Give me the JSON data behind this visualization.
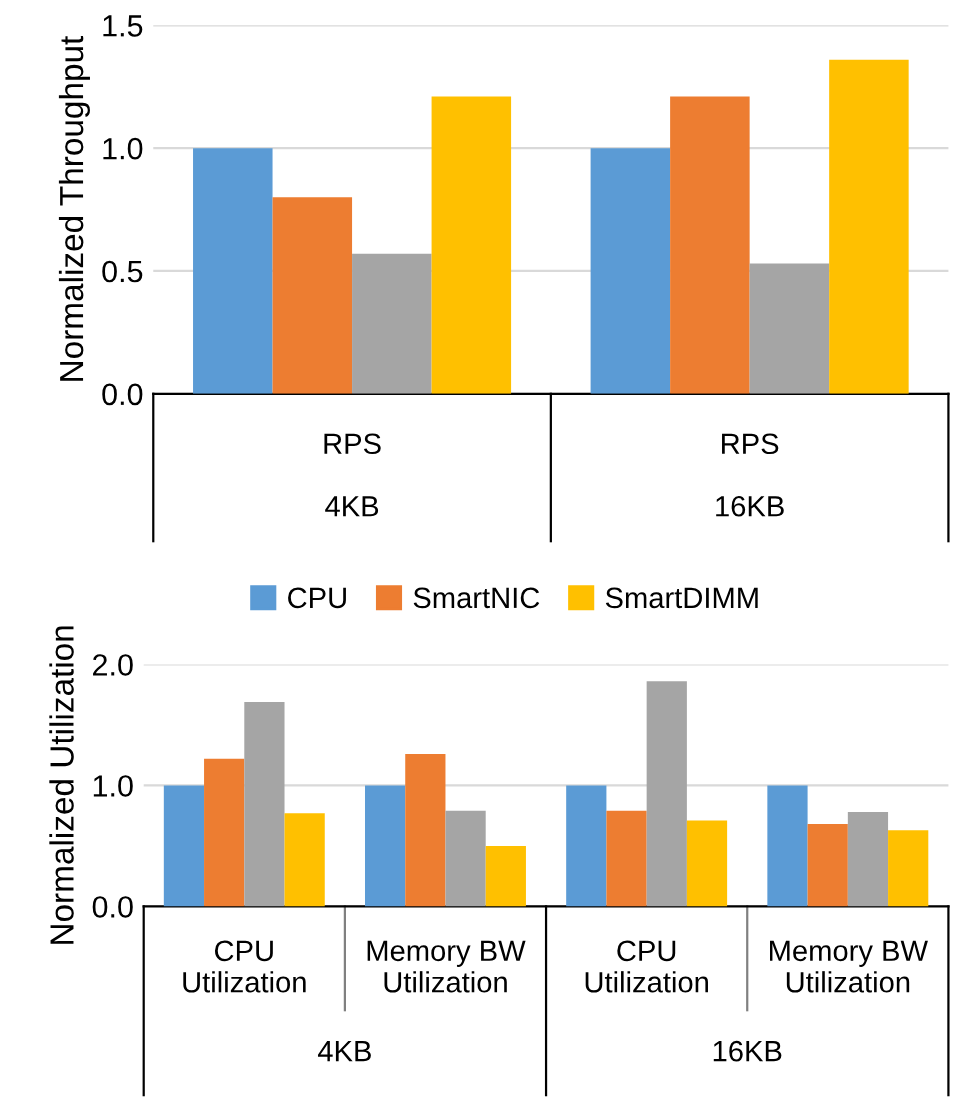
{
  "chart_data": [
    {
      "type": "bar",
      "ylabel": "Normalized Throughput",
      "categories": [
        "RPS",
        "RPS"
      ],
      "annotations": [
        "4KB",
        "16KB"
      ],
      "ylim": [
        0,
        1.5
      ],
      "yticks": [
        {
          "value": 0,
          "label": "0.0"
        },
        {
          "value": 0.5,
          "label": "0.5"
        },
        {
          "value": 1,
          "label": "1.0"
        },
        {
          "value": 1.5,
          "label": "1.5"
        }
      ],
      "grid": "y",
      "legend": false,
      "series": [
        {
          "color": "#5b9bd5",
          "values": [
            1.0,
            1.0
          ]
        },
        {
          "color": "#ed7d31",
          "values": [
            0.8,
            1.21
          ]
        },
        {
          "color": "#a5a5a5",
          "values": [
            0.57,
            0.53
          ]
        },
        {
          "color": "#ffc000",
          "values": [
            1.21,
            1.36
          ]
        }
      ]
    },
    {
      "type": "bar",
      "ylabel": "Normalized Utilization",
      "categories": [
        "CPU\nUtilization",
        "Memory BW\nUtilization",
        "CPU\nUtilization",
        "Memory BW\nUtilization"
      ],
      "annotations": [
        "4KB",
        "16KB"
      ],
      "ylim": [
        0,
        2
      ],
      "yticks": [
        {
          "value": 0,
          "label": "0.0"
        },
        {
          "value": 1,
          "label": "1.0"
        },
        {
          "value": 2,
          "label": "2.0"
        }
      ],
      "grid": "y",
      "legend": "top",
      "series": [
        {
          "name": "CPU",
          "color": "#5b9bd5",
          "values": [
            1.0,
            1.0,
            1.0,
            1.0
          ]
        },
        {
          "name": "SmartNIC",
          "color": "#ed7d31",
          "values": [
            1.22,
            1.26,
            0.79,
            0.68
          ]
        },
        {
          "color": "#a5a5a5",
          "values": [
            1.69,
            0.79,
            1.86,
            0.78
          ]
        },
        {
          "name": "SmartDIMM",
          "color": "#ffc000",
          "values": [
            0.77,
            0.5,
            0.71,
            0.63
          ]
        }
      ]
    }
  ]
}
